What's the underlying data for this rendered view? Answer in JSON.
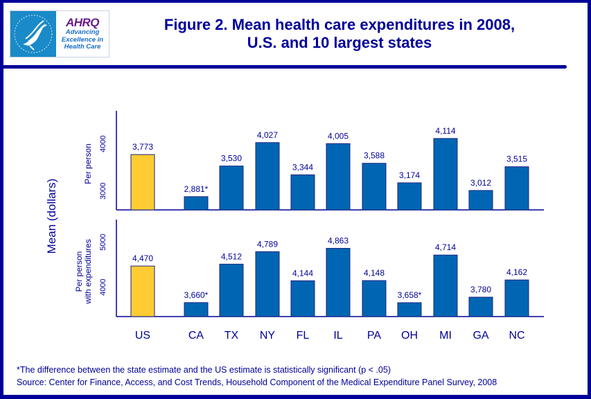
{
  "header": {
    "title_line1": "Figure 2.  Mean health care expenditures in 2008,",
    "title_line2": "U.S. and 10 largest states",
    "logo": {
      "hhs_icon": "hhs-eagle-icon",
      "ahrq_name": "AHRQ",
      "ahrq_tagline_1": "Advancing",
      "ahrq_tagline_2": "Excellence in",
      "ahrq_tagline_3": "Health Care"
    }
  },
  "colors": {
    "primary": "#000099",
    "us_bar": "#ffcc33",
    "state_bar": "#0066b3",
    "bar_outline": "#1a237e"
  },
  "footnotes": {
    "significance": "*The difference between the state estimate and the US estimate is statistically significant (p < .05)",
    "source": "Source: Center for Finance, Access, and Cost Trends, Household Component of the Medical Expenditure Panel Survey, 2008"
  },
  "chart_data": [
    {
      "type": "bar",
      "title": "Figure 2.  Mean health care expenditures in 2008, U.S. and 10 largest states",
      "panel_label": "Per person",
      "ylabel": "Mean (dollars)",
      "categories": [
        "US",
        "CA",
        "TX",
        "NY",
        "FL",
        "IL",
        "PA",
        "OH",
        "MI",
        "GA",
        "NC"
      ],
      "values": [
        3773,
        2881,
        3530,
        4027,
        3344,
        4005,
        3588,
        3174,
        4114,
        3012,
        3515
      ],
      "data_labels": [
        "3,773",
        "2,881*",
        "3,530",
        "4,027",
        "3,344",
        "4,005",
        "3,588",
        "3,174",
        "4,114",
        "3,012",
        "3,515"
      ],
      "significant": [
        false,
        true,
        false,
        false,
        false,
        false,
        false,
        false,
        false,
        false,
        false
      ],
      "yticks": [
        3000,
        4000
      ],
      "ytick_labels": [
        "3000",
        "4000"
      ],
      "ylim": [
        2600,
        4700
      ],
      "grid": false,
      "legend": "none"
    },
    {
      "type": "bar",
      "panel_label": "Per person with expenditures",
      "panel_label_lines": [
        "Per person",
        "with expenditures"
      ],
      "ylabel": "Mean (dollars)",
      "categories": [
        "US",
        "CA",
        "TX",
        "NY",
        "FL",
        "IL",
        "PA",
        "OH",
        "MI",
        "GA",
        "NC"
      ],
      "values": [
        4470,
        3660,
        4512,
        4789,
        4144,
        4863,
        4148,
        3658,
        4714,
        3780,
        4162
      ],
      "data_labels": [
        "4,470",
        "3,660*",
        "4,512",
        "4,789",
        "4,144",
        "4,863",
        "4,148",
        "3,658*",
        "4,714",
        "3,780",
        "4,162"
      ],
      "significant": [
        false,
        true,
        false,
        false,
        false,
        false,
        false,
        true,
        false,
        false,
        false
      ],
      "yticks": [
        4000,
        5000
      ],
      "ytick_labels": [
        "4000",
        "5000"
      ],
      "ylim": [
        3350,
        5500
      ],
      "grid": false,
      "legend": "none"
    }
  ]
}
